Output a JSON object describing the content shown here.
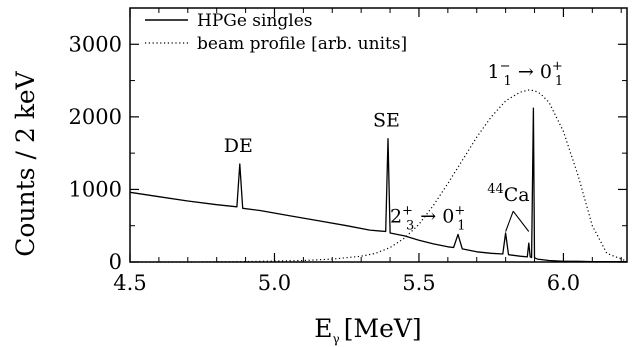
{
  "chart_data": {
    "type": "line",
    "xlabel": "E",
    "xlabel_sub": "γ",
    "xlabel_unit": "[MeV]",
    "ylabel": "Counts / 2 keV",
    "xlim": [
      4.5,
      6.22
    ],
    "ylim": [
      0,
      3500
    ],
    "x_ticks": [
      4.5,
      5.0,
      5.5,
      6.0
    ],
    "x_tick_labels": [
      "4.5",
      "5.0",
      "5.5",
      "6.0"
    ],
    "y_ticks": [
      0,
      1000,
      2000,
      3000
    ],
    "y_tick_labels": [
      "0",
      "1000",
      "2000",
      "3000"
    ],
    "grid": false,
    "legend_position": "top-left",
    "series": [
      {
        "name": "HPGe singles",
        "style": "solid",
        "x": [
          4.5,
          4.6,
          4.7,
          4.8,
          4.87,
          4.88,
          4.89,
          4.95,
          5.05,
          5.15,
          5.25,
          5.33,
          5.385,
          5.393,
          5.4,
          5.45,
          5.5,
          5.55,
          5.6,
          5.62,
          5.635,
          5.65,
          5.7,
          5.75,
          5.79,
          5.8,
          5.81,
          5.85,
          5.875,
          5.88,
          5.885,
          5.89,
          5.896,
          5.9,
          5.905,
          5.91,
          5.95,
          6.0,
          6.05,
          6.1,
          6.15,
          6.22
        ],
        "y": [
          960,
          900,
          840,
          790,
          760,
          1350,
          740,
          710,
          640,
          570,
          500,
          440,
          420,
          1700,
          400,
          360,
          300,
          250,
          210,
          200,
          380,
          180,
          140,
          120,
          110,
          400,
          100,
          80,
          70,
          260,
          70,
          60,
          2120,
          60,
          50,
          40,
          20,
          10,
          10,
          5,
          5,
          5
        ]
      },
      {
        "name": "beam profile [arb. units]",
        "style": "dotted",
        "x": [
          4.5,
          4.7,
          4.9,
          5.1,
          5.2,
          5.3,
          5.35,
          5.4,
          5.45,
          5.5,
          5.55,
          5.6,
          5.65,
          5.7,
          5.75,
          5.8,
          5.85,
          5.88,
          5.9,
          5.92,
          5.95,
          6.0,
          6.05,
          6.1,
          6.15,
          6.22
        ],
        "y": [
          0,
          0,
          5,
          20,
          40,
          80,
          120,
          200,
          330,
          520,
          780,
          1080,
          1400,
          1720,
          2000,
          2220,
          2340,
          2370,
          2360,
          2320,
          2200,
          1800,
          1200,
          500,
          120,
          10
        ]
      }
    ],
    "annotations": [
      {
        "label": "DE",
        "x": 4.88,
        "y": 1350
      },
      {
        "label": "SE",
        "x": 5.393,
        "y": 1700
      },
      {
        "label": "1",
        "sub": "1",
        "sup": "−",
        "arrow": "→",
        "label2": "0",
        "sub2": "1",
        "sup2": "+",
        "x": 5.9,
        "y": 2120
      },
      {
        "label": "2",
        "sub": "3",
        "sup": "+",
        "arrow": "→",
        "label2": "0",
        "sub2": "1",
        "sup2": "+",
        "x": 5.635,
        "y": 380
      },
      {
        "label": "Ca",
        "pre_sup": "44",
        "x": 5.84,
        "y": 700,
        "targets": [
          5.8,
          5.88
        ]
      }
    ]
  }
}
